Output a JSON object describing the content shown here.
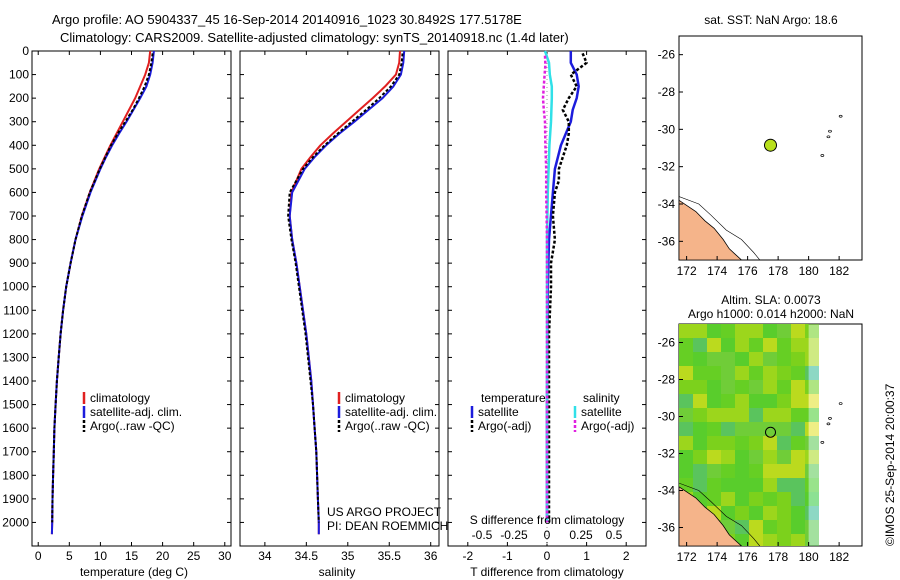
{
  "header": {
    "line1": "Argo profile: AO 5904337_45 16-Sep-2014 20140916_1023 30.8492S 177.5178E",
    "line2": "Climatology: CARS2009. Satellite-adjusted climatology: synTS_20140918.nc (1.4d later)"
  },
  "colors": {
    "climatology": "#e02020",
    "satellite": "#1c1cdc",
    "argo": "#000000",
    "sal_satellite": "#30e0e8",
    "sal_argo": "#e020e0",
    "land": "#f5b48a",
    "float_marker": "#b8e01c"
  },
  "panels": {
    "temperature": {
      "xlabel": "temperature (deg C)",
      "legend": [
        "climatology",
        "satellite-adj. clim.",
        "Argo(..raw -QC)"
      ]
    },
    "salinity": {
      "xlabel": "salinity",
      "legend": [
        "climatology",
        "satellite-adj. clim.",
        "Argo(..raw -QC)"
      ],
      "credit1": "US ARGO PROJECT",
      "credit2": "PI: DEAN ROEMMICH"
    },
    "difference": {
      "legend_t_title": "temperature",
      "legend_s_title": "salinity",
      "legend_t": [
        "satellite",
        "Argo(-adj)"
      ],
      "legend_s": [
        "satellite",
        "Argo(-adj)"
      ],
      "s_axis_label": "S difference from climatology",
      "t_axis_label": "T difference from climatology",
      "s_ticks": [
        "-0.5",
        "-0.25",
        "0",
        "0.25",
        "0.5"
      ]
    },
    "sst_map": {
      "title": "sat. SST: NaN Argo: 18.6"
    },
    "sla_map": {
      "title1": "Altim. SLA: 0.0073",
      "title2": "Argo h1000: 0.014 h2000: NaN",
      "side_label": "©IMOS 25-Sep-2014 20:00:37"
    }
  },
  "chart_data": [
    {
      "type": "line",
      "name": "temperature profile",
      "xlabel": "temperature (deg C)",
      "ylabel": "",
      "xlim": [
        -1,
        31
      ],
      "ylim": [
        2100,
        0
      ],
      "x_ticks": [
        0,
        5,
        10,
        15,
        20,
        25,
        30
      ],
      "y_ticks": [
        0,
        100,
        200,
        300,
        400,
        500,
        600,
        700,
        800,
        900,
        1000,
        1100,
        1200,
        1300,
        1400,
        1500,
        1600,
        1700,
        1800,
        1900,
        2000
      ],
      "series": [
        {
          "name": "climatology",
          "depth": [
            0,
            50,
            100,
            150,
            200,
            250,
            300,
            350,
            400,
            450,
            500,
            600,
            700,
            800,
            900,
            1000,
            1100,
            1200,
            1300,
            1400,
            1500,
            1600,
            1700,
            1800,
            1900,
            2000,
            2050
          ],
          "values": [
            18.0,
            17.8,
            17.2,
            16.4,
            15.6,
            14.6,
            13.6,
            12.6,
            11.6,
            10.7,
            9.8,
            8.3,
            7.0,
            6.0,
            5.2,
            4.5,
            4.0,
            3.6,
            3.3,
            3.0,
            2.8,
            2.6,
            2.5,
            2.4,
            2.3,
            2.25,
            2.2
          ]
        },
        {
          "name": "satellite-adj. clim.",
          "depth": [
            0,
            50,
            100,
            150,
            200,
            250,
            300,
            350,
            400,
            450,
            500,
            600,
            700,
            800,
            900,
            1000,
            1100,
            1200,
            1300,
            1400,
            1500,
            1600,
            1700,
            1800,
            1900,
            2000,
            2050
          ],
          "values": [
            18.6,
            18.4,
            18.0,
            17.4,
            16.4,
            15.3,
            14.2,
            13.0,
            11.9,
            10.9,
            10.0,
            8.4,
            7.1,
            6.0,
            5.2,
            4.5,
            4.0,
            3.6,
            3.3,
            3.0,
            2.8,
            2.6,
            2.5,
            2.4,
            2.3,
            2.25,
            2.2
          ]
        },
        {
          "name": "Argo(..raw -QC)",
          "depth": [
            10,
            50,
            100,
            150,
            200,
            250,
            300,
            350,
            400,
            450,
            500,
            600,
            700,
            800,
            900,
            1000,
            1100,
            1200,
            1300,
            1400,
            1500,
            1600,
            1700,
            1800,
            1900,
            2000
          ],
          "values": [
            18.4,
            18.2,
            17.8,
            17.1,
            16.2,
            15.2,
            14.0,
            12.8,
            11.7,
            10.8,
            9.9,
            8.3,
            7.0,
            6.0,
            5.2,
            4.5,
            4.0,
            3.6,
            3.3,
            3.0,
            2.8,
            2.6,
            2.5,
            2.4,
            2.3,
            2.25
          ]
        }
      ]
    },
    {
      "type": "line",
      "name": "salinity profile",
      "xlabel": "salinity",
      "ylabel": "",
      "xlim": [
        33.7,
        36.1
      ],
      "ylim": [
        2100,
        0
      ],
      "x_ticks": [
        34,
        34.5,
        35,
        35.5,
        36
      ],
      "series": [
        {
          "name": "climatology",
          "depth": [
            0,
            50,
            100,
            150,
            200,
            250,
            300,
            350,
            400,
            450,
            500,
            600,
            700,
            800,
            900,
            1000,
            1100,
            1200,
            1300,
            1400,
            1500,
            1600,
            1700,
            1800,
            1900,
            2000,
            2050
          ],
          "values": [
            35.63,
            35.62,
            35.58,
            35.45,
            35.3,
            35.14,
            34.98,
            34.82,
            34.67,
            34.55,
            34.44,
            34.32,
            34.3,
            34.33,
            34.38,
            34.42,
            34.46,
            34.5,
            34.53,
            34.56,
            34.58,
            34.6,
            34.62,
            34.63,
            34.64,
            34.65,
            34.65
          ]
        },
        {
          "name": "satellite-adj. clim.",
          "depth": [
            0,
            50,
            100,
            150,
            200,
            250,
            300,
            350,
            400,
            450,
            500,
            600,
            700,
            800,
            900,
            1000,
            1100,
            1200,
            1300,
            1400,
            1500,
            1600,
            1700,
            1800,
            1900,
            2000,
            2050
          ],
          "values": [
            35.68,
            35.67,
            35.64,
            35.55,
            35.42,
            35.25,
            35.08,
            34.9,
            34.74,
            34.6,
            34.48,
            34.33,
            34.3,
            34.33,
            34.38,
            34.42,
            34.46,
            34.5,
            34.53,
            34.56,
            34.58,
            34.6,
            34.62,
            34.63,
            34.64,
            34.65,
            34.65
          ]
        },
        {
          "name": "Argo(..raw -QC)",
          "depth": [
            10,
            50,
            100,
            150,
            200,
            250,
            300,
            350,
            400,
            450,
            500,
            600,
            700,
            800,
            900,
            1000,
            1100,
            1200,
            1300,
            1400,
            1500,
            1600,
            1700,
            1800,
            1900,
            2000
          ],
          "values": [
            35.66,
            35.65,
            35.62,
            35.52,
            35.38,
            35.22,
            35.05,
            34.88,
            34.72,
            34.58,
            34.46,
            34.3,
            34.28,
            34.32,
            34.37,
            34.41,
            34.45,
            34.49,
            34.52,
            34.55,
            34.58,
            34.6,
            34.62,
            34.63,
            34.64,
            34.65
          ]
        }
      ]
    },
    {
      "type": "line",
      "name": "difference from climatology",
      "xlabel": "T difference from climatology",
      "ylabel": "",
      "xlim": [
        -2.5,
        2.5
      ],
      "ylim": [
        2100,
        0
      ],
      "x_ticks": [
        -2,
        -1,
        0,
        1,
        2
      ],
      "series": [
        {
          "name": "temperature satellite",
          "depth": [
            0,
            50,
            100,
            150,
            200,
            250,
            300,
            400,
            500,
            600,
            800,
            1000,
            1200,
            1500,
            2000
          ],
          "values": [
            0.6,
            0.6,
            0.75,
            0.8,
            0.75,
            0.65,
            0.6,
            0.35,
            0.2,
            0.15,
            0.05,
            0.02,
            0.01,
            0.0,
            0.0
          ]
        },
        {
          "name": "temperature Argo(-adj)",
          "depth": [
            10,
            50,
            100,
            150,
            200,
            250,
            300,
            350,
            400,
            450,
            500,
            550,
            600,
            700,
            800,
            900,
            1000,
            1200,
            1500,
            2000
          ],
          "values": [
            0.9,
            1.0,
            0.6,
            0.75,
            0.55,
            0.4,
            0.55,
            0.55,
            0.5,
            0.4,
            0.3,
            0.3,
            0.2,
            0.15,
            0.2,
            0.1,
            0.1,
            0.05,
            0.05,
            0.05
          ]
        },
        {
          "name": "salinity satellite",
          "depth": [
            0,
            50,
            100,
            150,
            200,
            300,
            400,
            500,
            600,
            800,
            1000,
            1500,
            2000
          ],
          "values": [
            -0.05,
            0.05,
            0.07,
            0.12,
            0.12,
            0.1,
            0.06,
            0.04,
            0.02,
            0.0,
            0.0,
            0.0,
            0.0
          ]
        },
        {
          "name": "salinity Argo(-adj)",
          "depth": [
            20,
            60,
            100,
            150,
            200,
            250,
            300,
            400,
            500,
            600,
            800,
            1000,
            1500,
            2000
          ],
          "values": [
            -0.05,
            -0.04,
            -0.06,
            -0.08,
            -0.1,
            -0.08,
            -0.05,
            -0.04,
            -0.02,
            -0.02,
            0.0,
            0.0,
            0.0,
            0.0
          ]
        }
      ]
    },
    {
      "type": "scatter",
      "name": "SST map",
      "title": "sat. SST: NaN Argo: 18.6",
      "xlim": [
        171.5,
        183.5
      ],
      "ylim": [
        -37,
        -25
      ],
      "x_ticks": [
        172,
        174,
        176,
        178,
        180,
        182
      ],
      "y_ticks": [
        -26,
        -28,
        -30,
        -32,
        -34,
        -36
      ],
      "float_position": [
        177.5,
        -30.85
      ]
    },
    {
      "type": "heatmap",
      "name": "SLA map",
      "title": "Altim. SLA: 0.0073",
      "xlim": [
        171.5,
        183.5
      ],
      "ylim": [
        -37,
        -25
      ],
      "x_ticks": [
        172,
        174,
        176,
        178,
        180,
        182
      ],
      "y_ticks": [
        -26,
        -28,
        -30,
        -32,
        -34,
        -36
      ],
      "float_position": [
        177.5,
        -30.85
      ]
    }
  ]
}
